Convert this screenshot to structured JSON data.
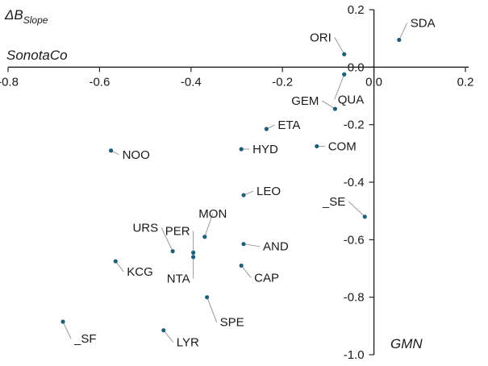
{
  "chart_data": {
    "type": "scatter",
    "title_y_note": "ΔB",
    "title_y_note_sub": "Slope",
    "x_title": "SonotaCo",
    "y_title": "GMN",
    "xlim": [
      -0.8,
      0.2
    ],
    "ylim": [
      -1.0,
      0.2
    ],
    "x_ticks": [
      "-0.8",
      "-0.6",
      "-0.4",
      "-0.2",
      "0.0",
      "0.2"
    ],
    "y_ticks": [
      "0.2",
      "0.0",
      "-0.2",
      "-0.4",
      "-0.6",
      "-0.8",
      "-1.0"
    ],
    "marker_color": "#1f5f7a",
    "points": [
      {
        "label": "SDA",
        "x": 0.055,
        "y": 0.095
      },
      {
        "label": "ORI",
        "x": -0.065,
        "y": 0.045
      },
      {
        "label": "QUA",
        "x": -0.065,
        "y": -0.025
      },
      {
        "label": "GEM",
        "x": -0.085,
        "y": -0.145
      },
      {
        "label": "ETA",
        "x": -0.235,
        "y": -0.215
      },
      {
        "label": "COM",
        "x": -0.125,
        "y": -0.275
      },
      {
        "label": "HYD",
        "x": -0.29,
        "y": -0.285
      },
      {
        "label": "NOO",
        "x": -0.575,
        "y": -0.29
      },
      {
        "label": "LEO",
        "x": -0.285,
        "y": -0.445
      },
      {
        "label": "_SE",
        "x": -0.02,
        "y": -0.52
      },
      {
        "label": "MON",
        "x": -0.37,
        "y": -0.59
      },
      {
        "label": "URS",
        "x": -0.44,
        "y": -0.64
      },
      {
        "label": "PER",
        "x": -0.395,
        "y": -0.645
      },
      {
        "label": "NTA",
        "x": -0.395,
        "y": -0.66
      },
      {
        "label": "AND",
        "x": -0.285,
        "y": -0.615
      },
      {
        "label": "CAP",
        "x": -0.29,
        "y": -0.69
      },
      {
        "label": "KCG",
        "x": -0.565,
        "y": -0.675
      },
      {
        "label": "SPE",
        "x": -0.365,
        "y": -0.8
      },
      {
        "label": "_SF",
        "x": -0.68,
        "y": -0.885
      },
      {
        "label": "LYR",
        "x": -0.46,
        "y": -0.915
      }
    ]
  }
}
